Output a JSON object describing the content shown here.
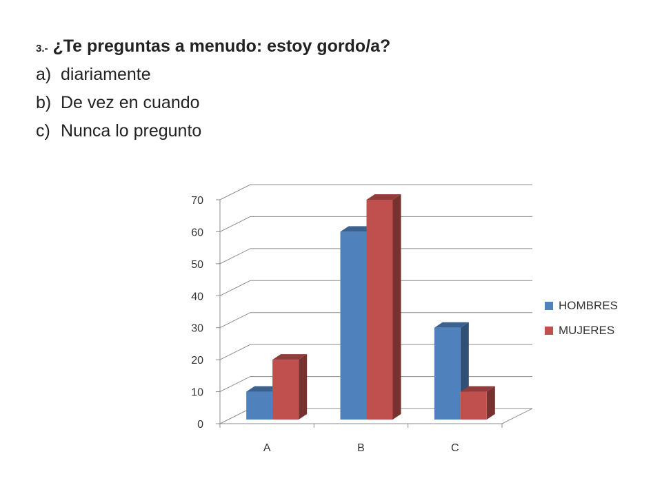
{
  "question": {
    "number": "3.-",
    "text": "¿Te preguntas a menudo: estoy gordo/a?",
    "options": [
      {
        "letter": "a)",
        "text": "diariamente"
      },
      {
        "letter": "b)",
        "text": "De vez en cuando"
      },
      {
        "letter": "c)",
        "text": "Nunca lo pregunto"
      }
    ]
  },
  "chart_data": {
    "type": "bar",
    "style": "3d-clustered-column",
    "categories": [
      "A",
      "B",
      "C"
    ],
    "series": [
      {
        "name": "HOMBRES",
        "values": [
          10,
          60,
          30
        ],
        "color": "#4f81bd"
      },
      {
        "name": "MUJERES",
        "values": [
          20,
          70,
          10
        ],
        "color": "#c0504d"
      }
    ],
    "ylim": [
      0,
      70
    ],
    "yticks": [
      "0",
      "10",
      "20",
      "30",
      "40",
      "50",
      "60",
      "70"
    ],
    "grid": true,
    "legend_position": "right"
  }
}
